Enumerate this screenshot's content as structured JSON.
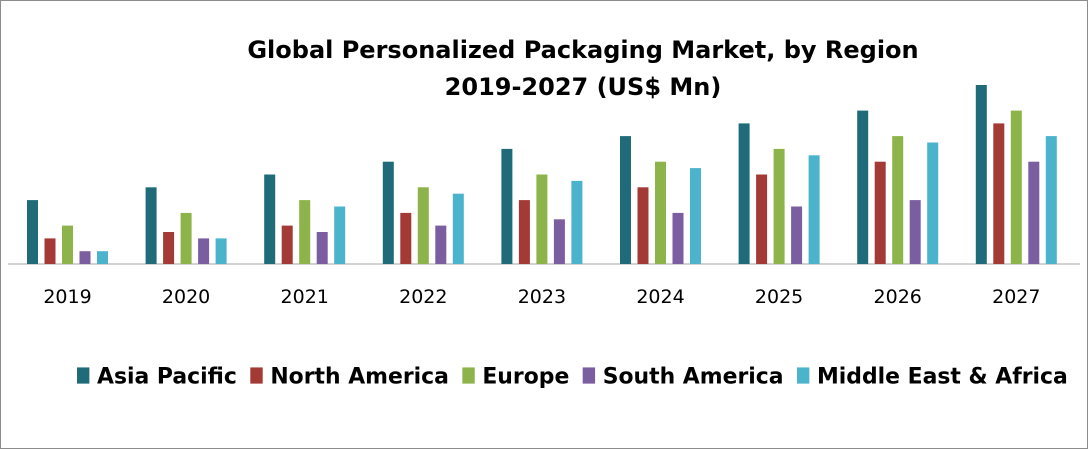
{
  "chart_data": {
    "type": "bar",
    "title_line1": "Global Personalized Packaging Market, by Region",
    "title_line2": "2019-2027 (US$ Mn)",
    "categories": [
      "2019",
      "2020",
      "2021",
      "2022",
      "2023",
      "2024",
      "2025",
      "2026",
      "2027"
    ],
    "series": [
      {
        "name": "Asia Pacific",
        "color": "#1f6b7a",
        "values": [
          50,
          60,
          70,
          80,
          90,
          100,
          110,
          120,
          140
        ]
      },
      {
        "name": "North America",
        "color": "#a33a36",
        "values": [
          20,
          25,
          30,
          40,
          50,
          60,
          70,
          80,
          110
        ]
      },
      {
        "name": "Europe",
        "color": "#8db44a",
        "values": [
          30,
          40,
          50,
          60,
          70,
          80,
          90,
          100,
          120
        ]
      },
      {
        "name": "South America",
        "color": "#7b5ea0",
        "values": [
          10,
          20,
          25,
          30,
          35,
          40,
          45,
          50,
          80
        ]
      },
      {
        "name": "Middle East & Africa",
        "color": "#4bb4cc",
        "values": [
          10,
          20,
          45,
          55,
          65,
          75,
          85,
          95,
          100
        ]
      }
    ],
    "ylim": [
      0,
      140
    ],
    "grid": false,
    "legend_position": "bottom"
  }
}
